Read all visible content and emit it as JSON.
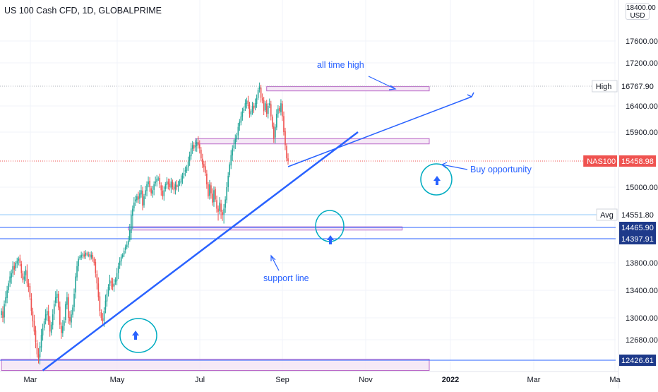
{
  "title": "US 100 Cash CFD, 1D, GLOBALPRIME",
  "currency": {
    "line1": "18400.00",
    "line2": "USD"
  },
  "colors": {
    "up": "#26a69a",
    "down": "#ef5350",
    "drawing": "#2962ff",
    "zone_fill": "#f3e5f5",
    "zone_border": "#ba68c8",
    "hline": "#2962ff",
    "last_price": "#ef5350",
    "axis_label_dark": "#131722",
    "hline_label_bg": "#1e3a8a"
  },
  "chart_data": {
    "type": "candlestick",
    "symbol": "NAS100",
    "ylim": [
      12300,
      18500
    ],
    "x_tick_labels": [
      "Mar",
      "May",
      "Jul",
      "Sep",
      "Nov",
      "2022",
      "Mar",
      "Ma"
    ],
    "y_tick_labels": [
      "17600.00",
      "17200.00",
      "16400.00",
      "15900.00",
      "15000.00",
      "13800.00",
      "13400.00",
      "13000.00",
      "12680.00"
    ],
    "y_tick_values": [
      17600,
      17200,
      16400,
      15900,
      15000,
      13800,
      13400,
      13000,
      12680
    ],
    "last_price": {
      "label": "NAS100",
      "value": "15458.98",
      "num": 15458.98
    },
    "high": {
      "label": "High",
      "value": "16767.90",
      "num": 16767.9
    },
    "avg": {
      "label": "Avg",
      "value": "14551.80",
      "num": 14551.8
    },
    "price_labels": [
      {
        "value": "14465.90",
        "num": 14465.9
      },
      {
        "value": "14397.91",
        "num": 14397.91
      },
      {
        "value": "12426.61",
        "num": 12426.61
      }
    ],
    "series_close": [
      13100,
      13000,
      13200,
      13300,
      13400,
      13500,
      13600,
      13650,
      13750,
      13700,
      13800,
      13850,
      13900,
      13800,
      13650,
      13550,
      13600,
      13700,
      13500,
      13450,
      13300,
      13100,
      12950,
      12800,
      12650,
      12500,
      12450,
      12600,
      12750,
      12850,
      12950,
      13050,
      13100,
      12950,
      12800,
      12900,
      13050,
      13200,
      13300,
      13350,
      13150,
      12900,
      12780,
      12880,
      12950,
      13200,
      13300,
      13000,
      12950,
      13050,
      13150,
      13350,
      13600,
      13750,
      13900,
      13950,
      14000,
      14000,
      13950,
      14050,
      14000,
      14000,
      13950,
      14000,
      13900,
      13800,
      13650,
      13500,
      13300,
      13100,
      13000,
      12950,
      13100,
      13250,
      13350,
      13450,
      13550,
      13500,
      13450,
      13500,
      13550,
      13650,
      13750,
      13850,
      13950,
      14000,
      14100,
      14200,
      14250,
      14350,
      14450,
      14550,
      14650,
      14750,
      14800,
      14850,
      14800,
      14900,
      14950,
      14700,
      14850,
      14950,
      15050,
      15100,
      15000,
      14900,
      14950,
      15050,
      15100,
      15150,
      15150,
      15050,
      14950,
      14850,
      14950,
      15050,
      15100,
      15050,
      15000,
      15100,
      15000,
      14950,
      15050,
      15000,
      15050,
      15100,
      15150,
      15200,
      15250,
      15300,
      15350,
      15450,
      15550,
      15650,
      15700,
      15650,
      15700,
      15750,
      15700,
      15650,
      15500,
      15400,
      15350,
      15250,
      15050,
      14850,
      15050,
      14900,
      14750,
      14950,
      14800,
      14650,
      14600,
      14750,
      14600,
      14550,
      14650,
      14800,
      15000,
      15200,
      15400,
      15550,
      15650,
      15700,
      15800,
      15850,
      16000,
      16100,
      16200,
      16300,
      16350,
      16450,
      16500,
      16400,
      16250,
      16300,
      16400,
      16350,
      16450,
      16550,
      16700,
      16760,
      16550,
      16500,
      16300,
      16450,
      16250,
      16400,
      16450,
      16200,
      16000,
      15800,
      16000,
      16250,
      16350,
      16300,
      16450,
      16200,
      15900,
      15700,
      15500,
      15459
    ],
    "zones": [
      {
        "start": 186,
        "end": 300,
        "top": 16760,
        "bottom": 16680
      },
      {
        "start": 136,
        "end": 300,
        "top": 15800,
        "bottom": 15720
      },
      {
        "start": 89,
        "end": 281,
        "top": 14470,
        "bottom": 14450
      },
      {
        "start": 0,
        "end": 300,
        "top": 12440,
        "bottom": 12300
      }
    ],
    "support_line": {
      "start": [
        29,
        12300
      ],
      "end": [
        250,
        15900
      ]
    },
    "annotations": {
      "ath": "all time high",
      "buy": "Buy opportunity",
      "support": "support line"
    }
  }
}
